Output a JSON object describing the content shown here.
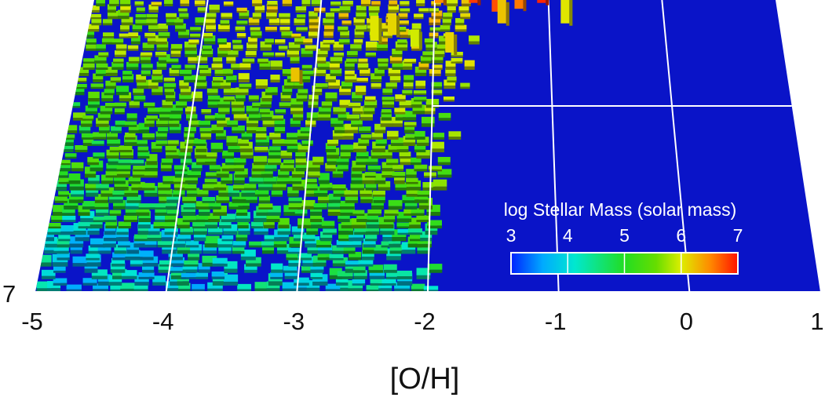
{
  "chart_data": {
    "type": "heatmap",
    "title": "",
    "xlabel": "[O/H]",
    "ylabel": "",
    "x_ticks": [
      "-5",
      "-4",
      "-3",
      "-2",
      "-1",
      "0",
      "1"
    ],
    "x_range": [
      -5,
      1
    ],
    "y_ticks_visible": [
      "7"
    ],
    "grid": true,
    "background_color": "#0a14c8",
    "colorbar": {
      "label": "log Stellar Mass (solar mass)",
      "ticks": [
        "3",
        "4",
        "5",
        "6",
        "7"
      ],
      "range": [
        3,
        7
      ],
      "colormap": [
        "#0022ff",
        "#00aaff",
        "#00e8d0",
        "#22dd22",
        "#66dd00",
        "#ddee00",
        "#ff8800",
        "#ff1100"
      ],
      "placement": "lower-right"
    },
    "description_of_values": {
      "occupied_metallicity_range": [
        -5,
        -1.9
      ],
      "high_mass_region_metallicity": [
        -2.8,
        -0.8
      ],
      "typical_log_mass_low_metallicity": 4.2,
      "typical_log_mass_high_metallicity": 5.4,
      "peak_log_mass": 7
    }
  }
}
